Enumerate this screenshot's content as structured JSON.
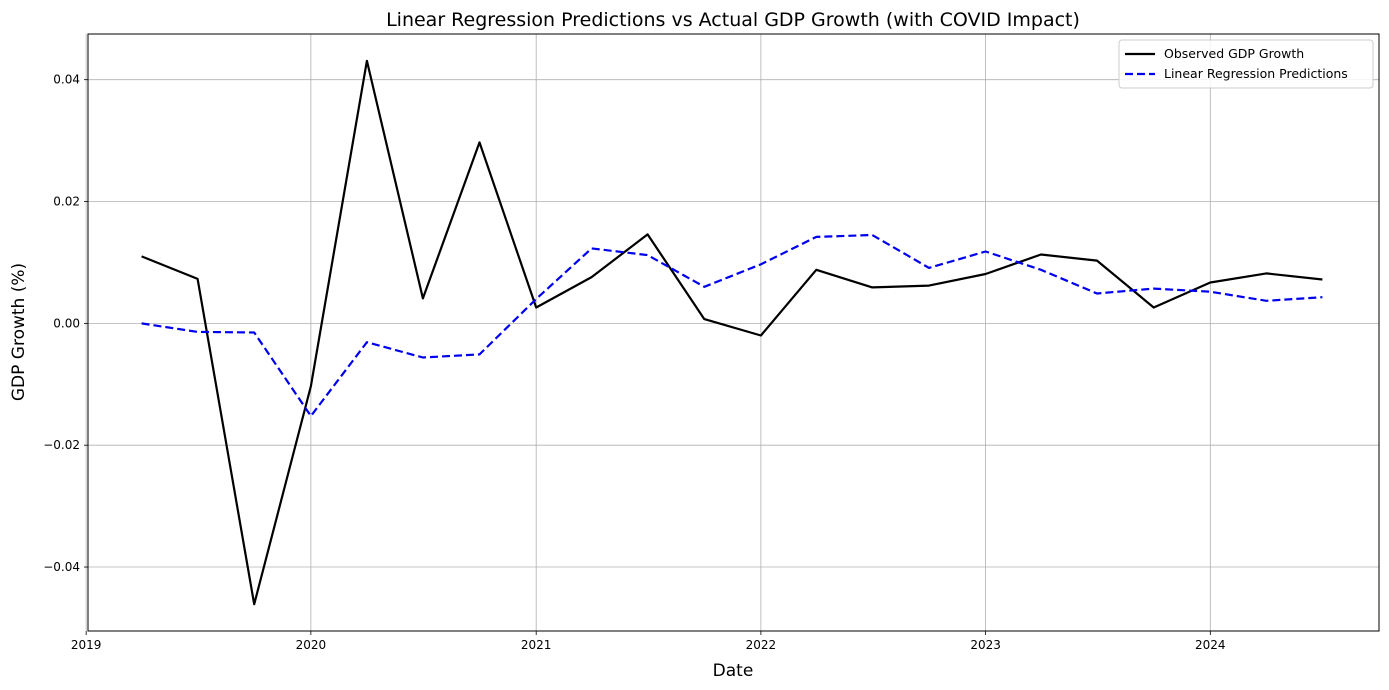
{
  "chart_data": {
    "type": "line",
    "title": "Linear Regression Predictions vs Actual GDP Growth (with COVID Impact)",
    "xlabel": "Date",
    "ylabel": "GDP Growth (%)",
    "xlim": [
      "2019-01-04",
      "2024-10-01"
    ],
    "ylim": [
      -0.0505,
      0.0475
    ],
    "grid": true,
    "legend_position": "top-right",
    "x_ticks": [
      "2019",
      "2020",
      "2021",
      "2022",
      "2023",
      "2024"
    ],
    "y_ticks": [
      -0.04,
      -0.02,
      0.0,
      0.02,
      0.04
    ],
    "y_tick_labels": [
      "−0.04",
      "−0.02",
      "0.00",
      "0.02",
      "0.04"
    ],
    "x": [
      "2019-04-01",
      "2019-07-01",
      "2019-10-01",
      "2020-01-01",
      "2020-04-01",
      "2020-07-01",
      "2020-10-01",
      "2021-01-01",
      "2021-04-01",
      "2021-07-01",
      "2021-10-01",
      "2022-01-01",
      "2022-04-01",
      "2022-07-01",
      "2022-10-01",
      "2023-01-01",
      "2023-04-01",
      "2023-07-01",
      "2023-10-01",
      "2024-01-01",
      "2024-04-01",
      "2024-07-01"
    ],
    "series": [
      {
        "name": "Observed GDP Growth",
        "color": "#000000",
        "style": "solid",
        "values": [
          0.011,
          0.0073,
          -0.0461,
          -0.0103,
          0.0431,
          0.0041,
          0.0297,
          0.0026,
          0.0076,
          0.0146,
          0.0007,
          -0.002,
          0.0088,
          0.0059,
          0.0062,
          0.0081,
          0.0113,
          0.0103,
          0.0026,
          0.0067,
          0.0082,
          0.0072
        ]
      },
      {
        "name": "Linear Regression Predictions",
        "color": "#0000ee",
        "style": "dashed",
        "values": [
          0.0,
          -0.0014,
          -0.0015,
          -0.0152,
          -0.0031,
          -0.0056,
          -0.0051,
          0.004,
          0.0123,
          0.0112,
          0.006,
          0.0097,
          0.0142,
          0.0145,
          0.0091,
          0.0118,
          0.0088,
          0.0049,
          0.0057,
          0.0052,
          0.0037,
          0.0043
        ]
      }
    ]
  }
}
